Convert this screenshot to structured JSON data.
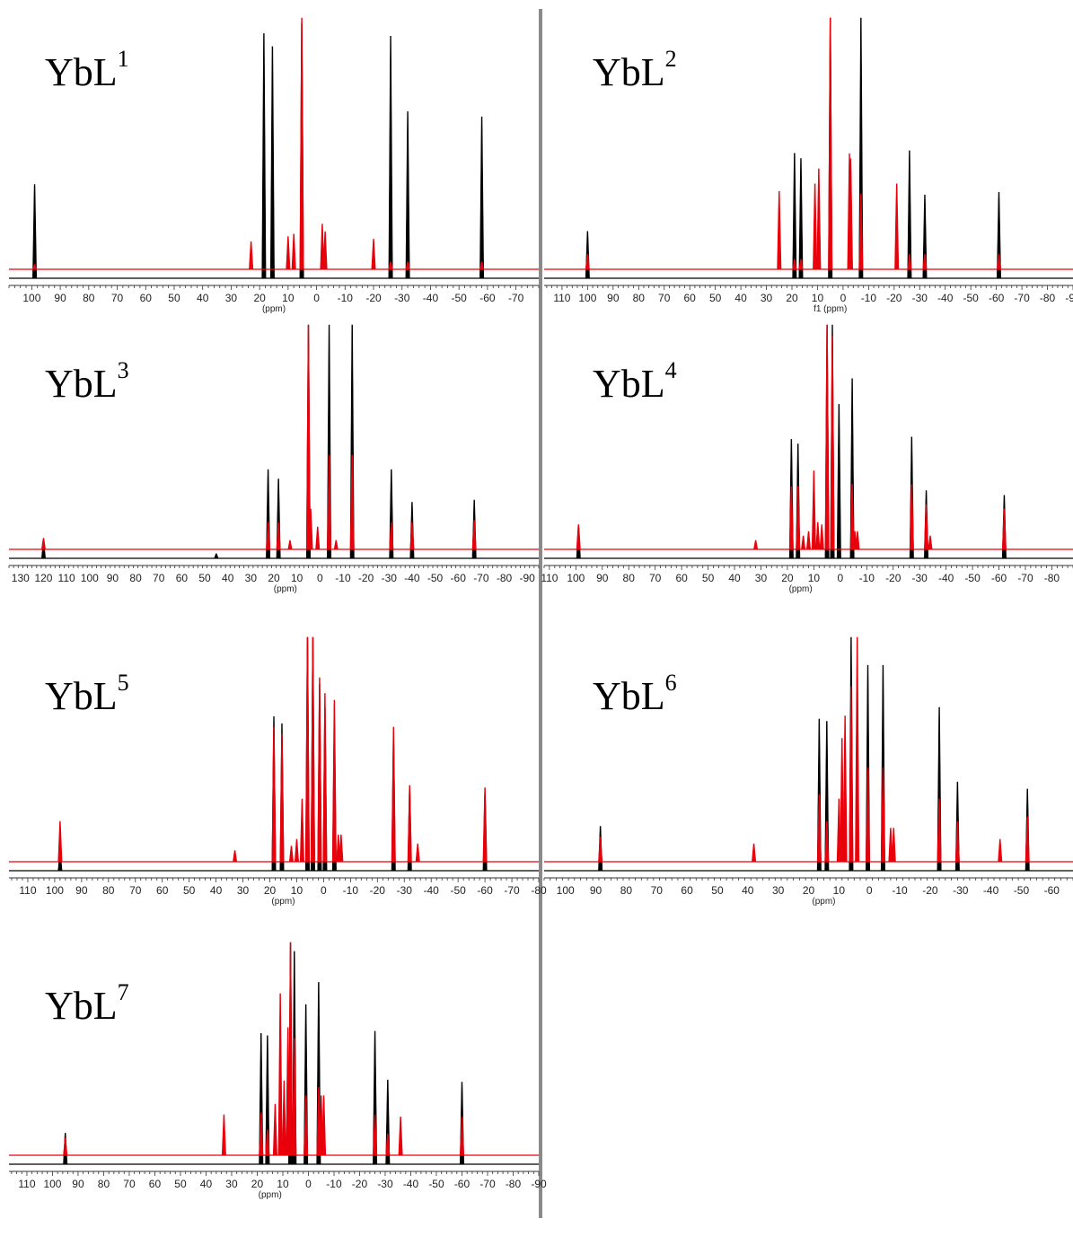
{
  "figure": {
    "colors": {
      "spectrum_a": "#000000",
      "spectrum_b": "#e8000b",
      "divider": "#8a8a8a"
    }
  },
  "chart_data": [
    {
      "type": "line",
      "title": "YbL",
      "title_sup": "1",
      "xlabel": "(ppm)",
      "xlim": [
        108,
        -78
      ],
      "xticks": [
        100,
        90,
        80,
        70,
        60,
        50,
        40,
        30,
        20,
        10,
        0,
        -10,
        -20,
        -30,
        -40,
        -50,
        -60,
        -70
      ],
      "series": [
        {
          "color": "#000000",
          "peaks": [
            {
              "x": 99,
              "y": 0.36
            },
            {
              "x": 18.5,
              "y": 0.94
            },
            {
              "x": 15.5,
              "y": 0.89
            },
            {
              "x": 5.2,
              "y": 0.98
            },
            {
              "x": -26,
              "y": 0.93
            },
            {
              "x": -32,
              "y": 0.64
            },
            {
              "x": -58,
              "y": 0.62
            }
          ]
        },
        {
          "color": "#e8000b",
          "peaks": [
            {
              "x": 99,
              "y": 0.02
            },
            {
              "x": 23,
              "y": 0.11
            },
            {
              "x": 10,
              "y": 0.13
            },
            {
              "x": 8,
              "y": 0.14
            },
            {
              "x": 5.2,
              "y": 1.0
            },
            {
              "x": -2,
              "y": 0.18
            },
            {
              "x": -3,
              "y": 0.15
            },
            {
              "x": -20,
              "y": 0.12
            },
            {
              "x": -26,
              "y": 0.03
            },
            {
              "x": -32,
              "y": 0.03
            },
            {
              "x": -58,
              "y": 0.03
            }
          ]
        }
      ]
    },
    {
      "type": "line",
      "title": "YbL",
      "title_sup": "2",
      "xlabel": "f1 (ppm)",
      "xlim": [
        117,
        -90
      ],
      "xticks": [
        110,
        100,
        90,
        80,
        70,
        60,
        50,
        40,
        30,
        20,
        10,
        0,
        -10,
        -20,
        -30,
        -40,
        -50,
        -60,
        -70,
        -80,
        -90
      ],
      "series": [
        {
          "color": "#000000",
          "peaks": [
            {
              "x": 100,
              "y": 0.18
            },
            {
              "x": 19,
              "y": 0.48
            },
            {
              "x": 16.5,
              "y": 0.46
            },
            {
              "x": 5,
              "y": 1.0
            },
            {
              "x": -7,
              "y": 1.0
            },
            {
              "x": -26,
              "y": 0.49
            },
            {
              "x": -32,
              "y": 0.32
            },
            {
              "x": -61,
              "y": 0.33
            }
          ]
        },
        {
          "color": "#e8000b",
          "peaks": [
            {
              "x": 100,
              "y": 0.06
            },
            {
              "x": 25,
              "y": 0.31
            },
            {
              "x": 19,
              "y": 0.04
            },
            {
              "x": 16.5,
              "y": 0.04
            },
            {
              "x": 11,
              "y": 0.34
            },
            {
              "x": 9.5,
              "y": 0.4
            },
            {
              "x": 5,
              "y": 1.0
            },
            {
              "x": -2.5,
              "y": 0.46
            },
            {
              "x": -3,
              "y": 0.44
            },
            {
              "x": -7,
              "y": 0.3
            },
            {
              "x": -21,
              "y": 0.34
            },
            {
              "x": -26,
              "y": 0.06
            },
            {
              "x": -32,
              "y": 0.06
            },
            {
              "x": -61,
              "y": 0.06
            }
          ]
        }
      ]
    },
    {
      "type": "line",
      "title": "YbL",
      "title_sup": "3",
      "xlabel": "(ppm)",
      "xlim": [
        135,
        -95
      ],
      "xticks": [
        130,
        120,
        110,
        100,
        90,
        80,
        70,
        60,
        50,
        40,
        30,
        20,
        10,
        0,
        -10,
        -20,
        -30,
        -40,
        -50,
        -60,
        -70,
        -80,
        -90
      ],
      "series": [
        {
          "color": "#000000",
          "peaks": [
            {
              "x": 120,
              "y": 0.07
            },
            {
              "x": 45,
              "y": 0.02
            },
            {
              "x": 22.5,
              "y": 0.38
            },
            {
              "x": 18,
              "y": 0.34
            },
            {
              "x": 5,
              "y": 1.0
            },
            {
              "x": -4,
              "y": 1.0
            },
            {
              "x": -14,
              "y": 1.0
            },
            {
              "x": -31,
              "y": 0.38
            },
            {
              "x": -40,
              "y": 0.24
            },
            {
              "x": -67,
              "y": 0.25
            }
          ]
        },
        {
          "color": "#e8000b",
          "peaks": [
            {
              "x": 120,
              "y": 0.05
            },
            {
              "x": 22.5,
              "y": 0.12
            },
            {
              "x": 18,
              "y": 0.12
            },
            {
              "x": 13,
              "y": 0.04
            },
            {
              "x": 5,
              "y": 1.0
            },
            {
              "x": 4,
              "y": 0.18
            },
            {
              "x": 1,
              "y": 0.1
            },
            {
              "x": -4,
              "y": 0.42
            },
            {
              "x": -7,
              "y": 0.04
            },
            {
              "x": -14,
              "y": 0.42
            },
            {
              "x": -31,
              "y": 0.12
            },
            {
              "x": -40,
              "y": 0.12
            },
            {
              "x": -67,
              "y": 0.13
            }
          ]
        }
      ]
    },
    {
      "type": "line",
      "title": "YbL",
      "title_sup": "4",
      "xlabel": "(ppm)",
      "xlim": [
        112,
        -88
      ],
      "xticks": [
        110,
        100,
        90,
        80,
        70,
        60,
        50,
        40,
        30,
        20,
        10,
        0,
        -10,
        -20,
        -30,
        -40,
        -50,
        -60,
        -70,
        -80
      ],
      "series": [
        {
          "color": "#000000",
          "peaks": [
            {
              "x": 99,
              "y": 0.14
            },
            {
              "x": 18.5,
              "y": 0.51
            },
            {
              "x": 16,
              "y": 0.49
            },
            {
              "x": 5,
              "y": 1.0
            },
            {
              "x": 3,
              "y": 1.0
            },
            {
              "x": 0.5,
              "y": 0.66
            },
            {
              "x": -4.5,
              "y": 0.77
            },
            {
              "x": -27,
              "y": 0.52
            },
            {
              "x": -32.5,
              "y": 0.29
            },
            {
              "x": -62,
              "y": 0.27
            }
          ]
        },
        {
          "color": "#e8000b",
          "peaks": [
            {
              "x": 99,
              "y": 0.11
            },
            {
              "x": 32,
              "y": 0.04
            },
            {
              "x": 18.5,
              "y": 0.28
            },
            {
              "x": 16,
              "y": 0.28
            },
            {
              "x": 14,
              "y": 0.06
            },
            {
              "x": 12,
              "y": 0.08
            },
            {
              "x": 10,
              "y": 0.35
            },
            {
              "x": 8.5,
              "y": 0.12
            },
            {
              "x": 7,
              "y": 0.11
            },
            {
              "x": 5,
              "y": 1.0
            },
            {
              "x": 3,
              "y": 0.95
            },
            {
              "x": -4.5,
              "y": 0.29
            },
            {
              "x": -5.5,
              "y": 0.08
            },
            {
              "x": -6.5,
              "y": 0.08
            },
            {
              "x": -27,
              "y": 0.29
            },
            {
              "x": -32.5,
              "y": 0.2
            },
            {
              "x": -34,
              "y": 0.06
            },
            {
              "x": -62,
              "y": 0.18
            }
          ]
        }
      ]
    },
    {
      "type": "line",
      "title": "YbL",
      "title_sup": "5",
      "xlabel": "(ppm)",
      "xlim": [
        117,
        -80
      ],
      "xticks": [
        110,
        100,
        90,
        80,
        70,
        60,
        50,
        40,
        30,
        20,
        10,
        0,
        -10,
        -20,
        -30,
        -40,
        -50,
        -60,
        -70,
        -80
      ],
      "series": [
        {
          "color": "#000000",
          "peaks": [
            {
              "x": 98,
              "y": 0.08
            },
            {
              "x": 18.5,
              "y": 0.66
            },
            {
              "x": 15.5,
              "y": 0.63
            },
            {
              "x": 6,
              "y": 1.0
            },
            {
              "x": 4,
              "y": 1.0
            },
            {
              "x": 1.5,
              "y": 0.8
            },
            {
              "x": -0.5,
              "y": 0.7
            },
            {
              "x": -4,
              "y": 0.63
            },
            {
              "x": -26,
              "y": 0.57
            },
            {
              "x": -32,
              "y": 0.36
            },
            {
              "x": -60,
              "y": 0.33
            }
          ]
        },
        {
          "color": "#e8000b",
          "peaks": [
            {
              "x": 98,
              "y": 0.18
            },
            {
              "x": 33,
              "y": 0.05
            },
            {
              "x": 18.5,
              "y": 0.6
            },
            {
              "x": 15.5,
              "y": 0.57
            },
            {
              "x": 12,
              "y": 0.07
            },
            {
              "x": 10,
              "y": 0.1
            },
            {
              "x": 8,
              "y": 0.28
            },
            {
              "x": 6,
              "y": 1.0
            },
            {
              "x": 4,
              "y": 1.0
            },
            {
              "x": 1.5,
              "y": 0.82
            },
            {
              "x": -0.5,
              "y": 0.75
            },
            {
              "x": -4,
              "y": 0.72
            },
            {
              "x": -5.5,
              "y": 0.12
            },
            {
              "x": -6.5,
              "y": 0.12
            },
            {
              "x": -26,
              "y": 0.6
            },
            {
              "x": -32,
              "y": 0.34
            },
            {
              "x": -35,
              "y": 0.08
            },
            {
              "x": -60,
              "y": 0.33
            }
          ]
        }
      ]
    },
    {
      "type": "line",
      "title": "YbL",
      "title_sup": "6",
      "xlabel": "(ppm)",
      "xlim": [
        107,
        -67
      ],
      "xticks": [
        100,
        90,
        80,
        70,
        60,
        50,
        40,
        30,
        20,
        10,
        0,
        -10,
        -20,
        -30,
        -40,
        -50,
        -60
      ],
      "series": [
        {
          "color": "#000000",
          "peaks": [
            {
              "x": 88.5,
              "y": 0.19
            },
            {
              "x": 16.5,
              "y": 0.65
            },
            {
              "x": 14,
              "y": 0.64
            },
            {
              "x": 6,
              "y": 1.0
            },
            {
              "x": 0.5,
              "y": 0.88
            },
            {
              "x": -4.5,
              "y": 0.88
            },
            {
              "x": -23,
              "y": 0.7
            },
            {
              "x": -29,
              "y": 0.38
            },
            {
              "x": -52,
              "y": 0.35
            }
          ]
        },
        {
          "color": "#e8000b",
          "peaks": [
            {
              "x": 88.5,
              "y": 0.11
            },
            {
              "x": 38,
              "y": 0.08
            },
            {
              "x": 16.5,
              "y": 0.3
            },
            {
              "x": 14,
              "y": 0.18
            },
            {
              "x": 10,
              "y": 0.28
            },
            {
              "x": 9,
              "y": 0.55
            },
            {
              "x": 8,
              "y": 0.65
            },
            {
              "x": 6,
              "y": 0.78
            },
            {
              "x": 4,
              "y": 1.0
            },
            {
              "x": 0.5,
              "y": 0.42
            },
            {
              "x": -4.5,
              "y": 0.42
            },
            {
              "x": -7,
              "y": 0.15
            },
            {
              "x": -8,
              "y": 0.15
            },
            {
              "x": -23,
              "y": 0.28
            },
            {
              "x": -29,
              "y": 0.18
            },
            {
              "x": -43,
              "y": 0.1
            },
            {
              "x": -52,
              "y": 0.2
            }
          ]
        }
      ]
    },
    {
      "type": "line",
      "title": "YbL",
      "title_sup": "7",
      "xlabel": "(ppm)",
      "xlim": [
        117,
        -90
      ],
      "xticks": [
        110,
        100,
        90,
        80,
        70,
        60,
        50,
        40,
        30,
        20,
        10,
        0,
        -10,
        -20,
        -30,
        -40,
        -50,
        -60,
        -70,
        -80,
        -90
      ],
      "series": [
        {
          "color": "#000000",
          "peaks": [
            {
              "x": 95,
              "y": 0.14
            },
            {
              "x": 18.5,
              "y": 0.59
            },
            {
              "x": 16,
              "y": 0.58
            },
            {
              "x": 7,
              "y": 1.0
            },
            {
              "x": 5.5,
              "y": 0.96
            },
            {
              "x": 1,
              "y": 0.72
            },
            {
              "x": -4,
              "y": 0.82
            },
            {
              "x": -26,
              "y": 0.6
            },
            {
              "x": -31,
              "y": 0.38
            },
            {
              "x": -60,
              "y": 0.37
            }
          ]
        },
        {
          "color": "#e8000b",
          "peaks": [
            {
              "x": 95,
              "y": 0.08
            },
            {
              "x": 33,
              "y": 0.19
            },
            {
              "x": 18.5,
              "y": 0.2
            },
            {
              "x": 16,
              "y": 0.12
            },
            {
              "x": 13,
              "y": 0.24
            },
            {
              "x": 11,
              "y": 0.76
            },
            {
              "x": 9.5,
              "y": 0.35
            },
            {
              "x": 8,
              "y": 0.6
            },
            {
              "x": 7,
              "y": 1.0
            },
            {
              "x": 5.5,
              "y": 0.55
            },
            {
              "x": 1,
              "y": 0.28
            },
            {
              "x": -4,
              "y": 0.32
            },
            {
              "x": -5,
              "y": 0.28
            },
            {
              "x": -6,
              "y": 0.28
            },
            {
              "x": -26,
              "y": 0.19
            },
            {
              "x": -31,
              "y": 0.1
            },
            {
              "x": -36,
              "y": 0.18
            },
            {
              "x": -60,
              "y": 0.18
            }
          ]
        }
      ]
    }
  ]
}
